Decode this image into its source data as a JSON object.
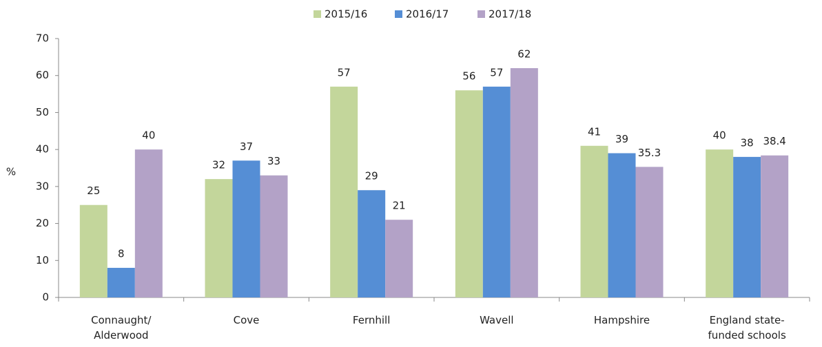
{
  "chart_data": {
    "type": "bar",
    "y_label": "%",
    "categories": [
      "Connaught/\nAlderwood",
      "Cove",
      "Fernhill",
      "Wavell",
      "Hampshire",
      "England state-\nfunded schools"
    ],
    "series": [
      {
        "name": "2015/16",
        "color": "#c3d69b",
        "values": [
          25,
          32,
          57,
          56,
          41,
          40
        ]
      },
      {
        "name": "2016/17",
        "color": "#558ed5",
        "values": [
          8,
          37,
          29,
          57,
          39,
          38
        ]
      },
      {
        "name": "2017/18",
        "color": "#b3a2c7",
        "values": [
          40,
          33,
          21,
          62,
          35.3,
          38.4
        ]
      }
    ],
    "ylim": [
      0,
      70
    ],
    "yticks": [
      0,
      10,
      20,
      30,
      40,
      50,
      60,
      70
    ],
    "legend": "top"
  }
}
